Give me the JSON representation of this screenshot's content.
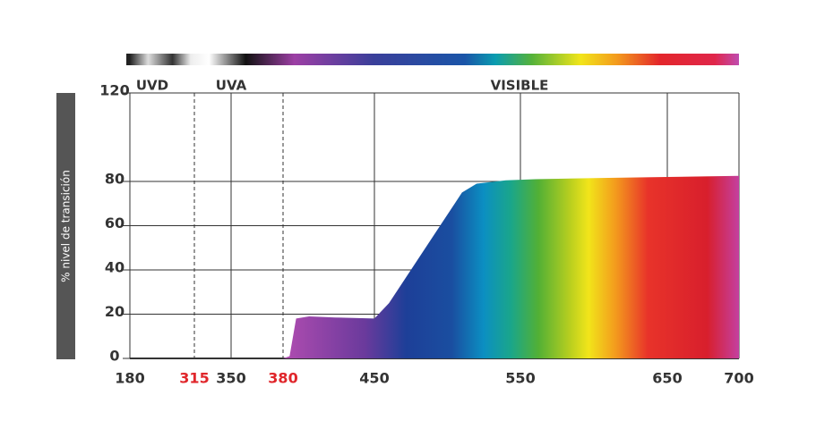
{
  "chart_data": {
    "type": "area",
    "ylabel": "% nivel de transición",
    "regions": [
      "UVD",
      "UVA",
      "VISIBLE"
    ],
    "xticks": [
      180,
      350,
      450,
      550,
      650,
      700
    ],
    "xticks_highlighted": [
      315,
      380
    ],
    "highlight_color": "#e0262b",
    "xlim": [
      180,
      700
    ],
    "ylim": [
      0,
      120
    ],
    "yticks": [
      0,
      20,
      40,
      60,
      80,
      120
    ],
    "grid": true,
    "series": [
      {
        "x": [
          180,
          380,
          385,
          390,
          400,
          420,
          450,
          460,
          480,
          500,
          510,
          520,
          540,
          560,
          600,
          650,
          700
        ],
        "values": [
          0,
          0,
          1,
          18,
          19,
          18.5,
          18,
          25,
          45,
          65,
          75,
          79,
          80.5,
          81,
          81.5,
          82,
          82.5
        ]
      }
    ]
  }
}
